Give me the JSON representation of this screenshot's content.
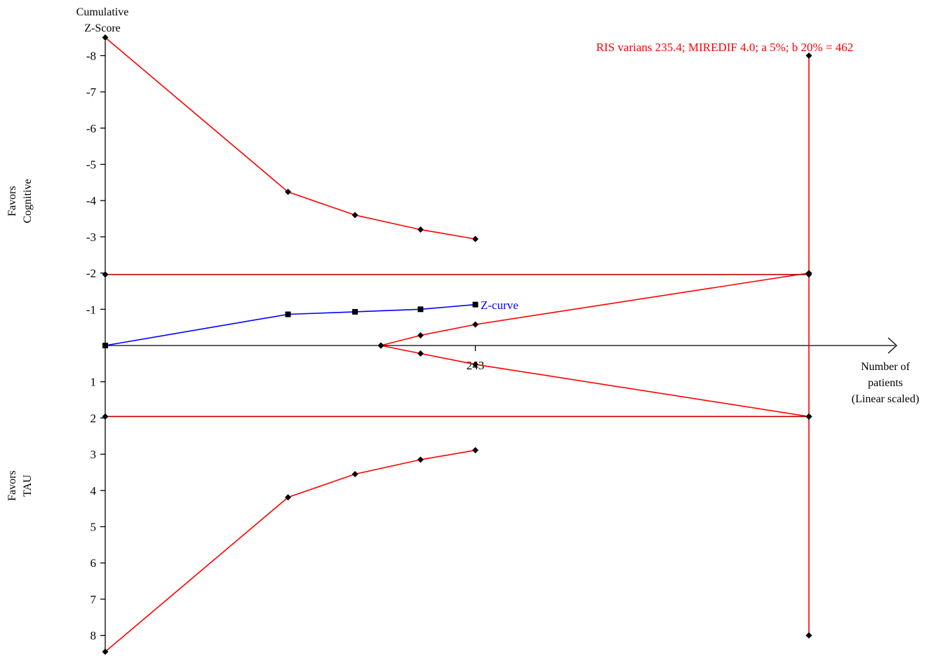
{
  "chart_data": {
    "type": "line",
    "y_title": [
      "Cumulative",
      "Z-Score"
    ],
    "x_title": [
      "Number of",
      "patients",
      "(Linear scaled)"
    ],
    "favors_top": [
      "Favors",
      "Cognitive"
    ],
    "favors_bottom": [
      "Favors",
      "TAU"
    ],
    "annotation": "RIS varians 235.4; MIREDIF 4.0; a 5%; b 20% = 462",
    "x_tick_label": "243",
    "z_curve_label": "Z-curve",
    "ylim": [
      -8.5,
      8.5
    ],
    "xlim": [
      0,
      462
    ],
    "y_ticks": [
      {
        "value": -8,
        "label": "-8"
      },
      {
        "value": -7,
        "label": "-7"
      },
      {
        "value": -6,
        "label": "-6"
      },
      {
        "value": -5,
        "label": "-5"
      },
      {
        "value": -4,
        "label": "-4"
      },
      {
        "value": -3,
        "label": "-3"
      },
      {
        "value": -2,
        "label": "-2"
      },
      {
        "value": -1,
        "label": "-1"
      },
      {
        "value": 1,
        "label": "1"
      },
      {
        "value": 2,
        "label": "2"
      },
      {
        "value": 3,
        "label": "3"
      },
      {
        "value": 4,
        "label": "4"
      },
      {
        "value": 5,
        "label": "5"
      },
      {
        "value": 6,
        "label": "6"
      },
      {
        "value": 7,
        "label": "7"
      },
      {
        "value": 8,
        "label": "8"
      }
    ],
    "x_tick": 243,
    "ris": 462,
    "colors": {
      "boundary": "#ff0000",
      "conventional": "#c00000",
      "zcurve": "#0000ff",
      "axis": "#000000",
      "marker": "#000000"
    },
    "series": [
      {
        "name": "Z-curve",
        "role": "zcurve",
        "marker": "square",
        "x": [
          0,
          120,
          164,
          207,
          243
        ],
        "y": [
          0,
          -0.86,
          -0.93,
          -1.0,
          -1.13
        ]
      },
      {
        "role": "upper-boundary",
        "marker": "diamond",
        "x": [
          0,
          120,
          164,
          207,
          243
        ],
        "y": [
          -8.5,
          -4.24,
          -3.6,
          -3.2,
          -2.94
        ]
      },
      {
        "role": "lower-boundary",
        "marker": "diamond",
        "x": [
          0,
          120,
          164,
          207,
          243
        ],
        "y": [
          8.45,
          4.19,
          3.55,
          3.15,
          2.89
        ]
      },
      {
        "role": "futility-upper",
        "marker": "diamond",
        "x": [
          181,
          207,
          243,
          462
        ],
        "y": [
          0,
          -0.28,
          -0.58,
          -2.0
        ]
      },
      {
        "role": "futility-lower",
        "marker": "diamond",
        "x": [
          181,
          207,
          243,
          462
        ],
        "y": [
          0,
          0.22,
          0.52,
          1.96
        ]
      },
      {
        "role": "conventional-upper",
        "marker": "diamond",
        "markers_at_ends": true,
        "x": [
          0,
          462
        ],
        "y": [
          -1.96,
          -1.96
        ]
      },
      {
        "role": "conventional-lower",
        "marker": "diamond",
        "markers_at_ends": true,
        "x": [
          0,
          462
        ],
        "y": [
          1.96,
          1.96
        ]
      },
      {
        "role": "ris-line",
        "marker": "diamond",
        "markers_at_ends": true,
        "x": [
          462,
          462
        ],
        "y": [
          -8.0,
          8.0
        ]
      }
    ]
  }
}
